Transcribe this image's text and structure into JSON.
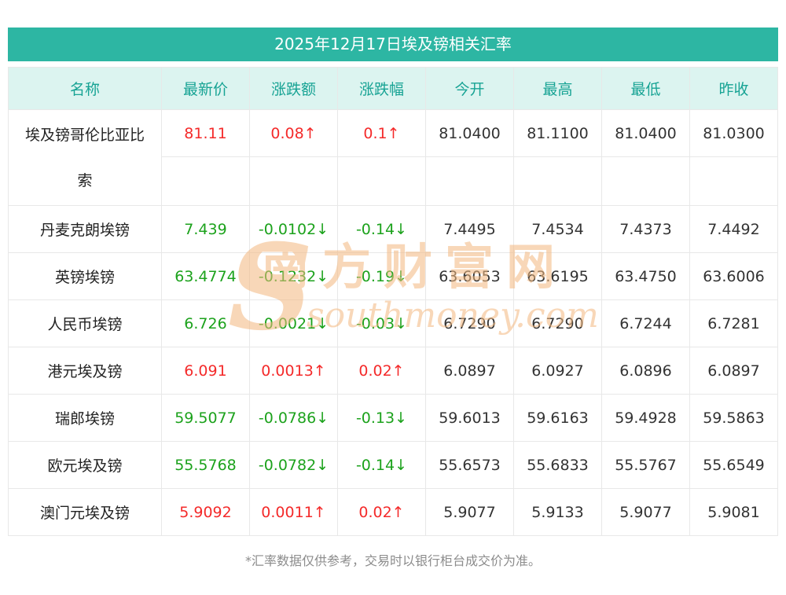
{
  "page": {
    "title": "2025年12月17日埃及镑相关汇率",
    "footnote": "*汇率数据仅供参考，交易时以银行柜台成交价为准。"
  },
  "watermark": {
    "initial": "S",
    "line1": "南方财富网",
    "line2": "southmoney.com"
  },
  "colors": {
    "accent": "#2db6a3",
    "accent-bg": "#dcf4f0",
    "accent-text": "#17a394",
    "up": "#f42a2a",
    "down": "#1ca21c",
    "text": "#333333",
    "muted": "#8c8c8c",
    "border": "#e8e8e8",
    "watermark": "#f3b87f"
  },
  "chart_data": {
    "type": "table",
    "title": "2025年12月17日埃及镑相关汇率",
    "headers": [
      "名称",
      "最新价",
      "涨跌额",
      "涨跌幅",
      "今开",
      "最高",
      "最低",
      "昨收"
    ],
    "rows": [
      {
        "name": "埃及镑哥伦比亚比索",
        "latest": "81.11",
        "change": "0.08↑",
        "change_pct": "0.1↑",
        "open": "81.0400",
        "high": "81.1100",
        "low": "81.0400",
        "prev_close": "81.0300",
        "trend": "up"
      },
      {
        "name": "丹麦克朗埃镑",
        "latest": "7.439",
        "change": "-0.0102↓",
        "change_pct": "-0.14↓",
        "open": "7.4495",
        "high": "7.4534",
        "low": "7.4373",
        "prev_close": "7.4492",
        "trend": "down"
      },
      {
        "name": "英镑埃镑",
        "latest": "63.4774",
        "change": "-0.1232↓",
        "change_pct": "-0.19↓",
        "open": "63.6053",
        "high": "63.6195",
        "low": "63.4750",
        "prev_close": "63.6006",
        "trend": "down"
      },
      {
        "name": "人民币埃镑",
        "latest": "6.726",
        "change": "-0.0021↓",
        "change_pct": "-0.03↓",
        "open": "6.7290",
        "high": "6.7290",
        "low": "6.7244",
        "prev_close": "6.7281",
        "trend": "down"
      },
      {
        "name": "港元埃及镑",
        "latest": "6.091",
        "change": "0.0013↑",
        "change_pct": "0.02↑",
        "open": "6.0897",
        "high": "6.0927",
        "low": "6.0896",
        "prev_close": "6.0897",
        "trend": "up"
      },
      {
        "name": "瑞郎埃镑",
        "latest": "59.5077",
        "change": "-0.0786↓",
        "change_pct": "-0.13↓",
        "open": "59.6013",
        "high": "59.6163",
        "low": "59.4928",
        "prev_close": "59.5863",
        "trend": "down"
      },
      {
        "name": "欧元埃及镑",
        "latest": "55.5768",
        "change": "-0.0782↓",
        "change_pct": "-0.14↓",
        "open": "55.6573",
        "high": "55.6833",
        "low": "55.5767",
        "prev_close": "55.6549",
        "trend": "down"
      },
      {
        "name": "澳门元埃及镑",
        "latest": "5.9092",
        "change": "0.0011↑",
        "change_pct": "0.02↑",
        "open": "5.9077",
        "high": "5.9133",
        "low": "5.9077",
        "prev_close": "5.9081",
        "trend": "up"
      }
    ]
  }
}
